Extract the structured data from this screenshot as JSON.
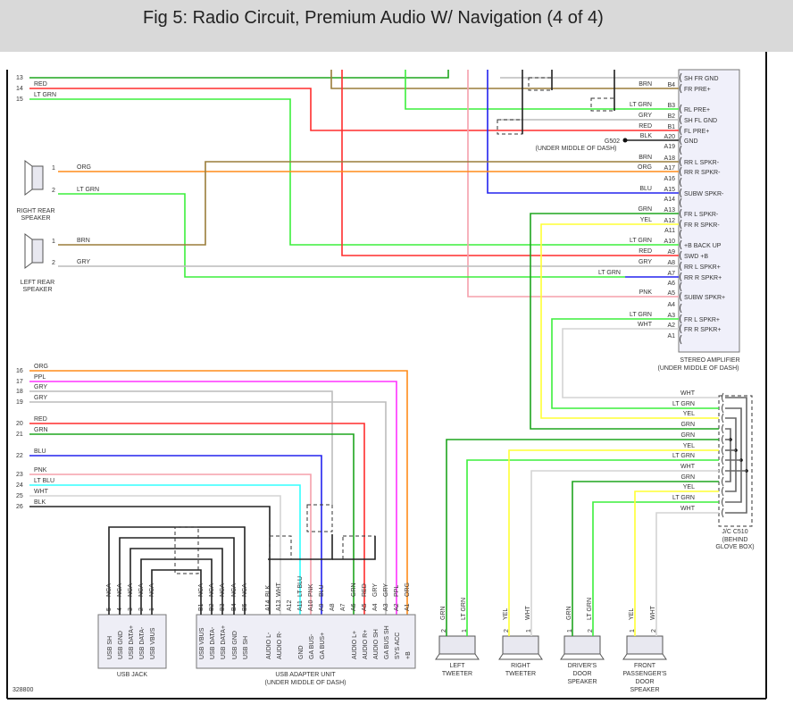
{
  "title": "Fig 5: Radio Circuit, Premium Audio W/ Navigation (4 of 4)",
  "figure_id": "328800",
  "colors": {
    "GRN": "#1ea51e",
    "LT GRN": "#3bef3b",
    "RED": "#ff2d2d",
    "BRN": "#9a7d3a",
    "ORG": "#ff8c1a",
    "BLU": "#2323ee",
    "PNK": "#f5a0ac",
    "GRY": "#bcbcbc",
    "WHT": "#d4d4d4",
    "YEL": "#ffff33",
    "PPL": "#ff33ff",
    "LT BLU": "#33ffff",
    "BLK": "#222222"
  },
  "left_wires_top": [
    {
      "num": "13",
      "color": ""
    },
    {
      "num": "14",
      "color": "RED"
    },
    {
      "num": "15",
      "color": "LT GRN"
    }
  ],
  "amplifier": {
    "name": "STEREO AMPLIFIER",
    "location": "(UNDER MIDDLE OF DASH)",
    "pins": [
      {
        "pin": "",
        "wire": "",
        "func": "SH FR GND"
      },
      {
        "pin": "B4",
        "wire": "BRN",
        "func": "FR PRE+"
      },
      {
        "pin": "B3",
        "wire": "LT GRN",
        "func": "RL PRE+"
      },
      {
        "pin": "B2",
        "wire": "GRY",
        "func": "SH FL GND"
      },
      {
        "pin": "B1",
        "wire": "RED",
        "func": "FL PRE+"
      },
      {
        "pin": "A20",
        "wire": "BLK",
        "func": "GND"
      },
      {
        "pin": "A19",
        "wire": "",
        "func": ""
      },
      {
        "pin": "A18",
        "wire": "BRN",
        "func": "RR L SPKR-"
      },
      {
        "pin": "A17",
        "wire": "ORG",
        "func": "RR R SPKR-"
      },
      {
        "pin": "A16",
        "wire": "",
        "func": ""
      },
      {
        "pin": "A15",
        "wire": "BLU",
        "func": "SUBW SPKR-"
      },
      {
        "pin": "A14",
        "wire": "",
        "func": ""
      },
      {
        "pin": "A13",
        "wire": "GRN",
        "func": "FR L SPKR-"
      },
      {
        "pin": "A12",
        "wire": "YEL",
        "func": "FR R SPKR-"
      },
      {
        "pin": "A11",
        "wire": "",
        "func": ""
      },
      {
        "pin": "A10",
        "wire": "LT GRN",
        "func": "+B BACK UP"
      },
      {
        "pin": "A9",
        "wire": "RED",
        "func": "SWD +B"
      },
      {
        "pin": "A8",
        "wire": "GRY",
        "func": "RR L SPKR+"
      },
      {
        "pin": "A7",
        "wire": "BLU",
        "func": "RR R SPKR+"
      },
      {
        "pin": "A6",
        "wire": "",
        "func": ""
      },
      {
        "pin": "A5",
        "wire": "PNK",
        "func": "SUBW SPKR+"
      },
      {
        "pin": "A4",
        "wire": "",
        "func": ""
      },
      {
        "pin": "A3",
        "wire": "LT GRN",
        "func": "FR L SPKR+"
      },
      {
        "pin": "A2",
        "wire": "WHT",
        "func": "FR R SPKR+"
      },
      {
        "pin": "A1",
        "wire": "",
        "func": ""
      }
    ],
    "a7_splice_wire": "LT GRN"
  },
  "ground": {
    "name": "G502",
    "location": "(UNDER MIDDLE OF DASH)"
  },
  "rear_speakers": [
    {
      "name": "RIGHT REAR",
      "name2": "SPEAKER",
      "pins": [
        {
          "num": "1",
          "wire": "ORG"
        },
        {
          "num": "2",
          "wire": "LT GRN"
        }
      ]
    },
    {
      "name": "LEFT REAR",
      "name2": "SPEAKER",
      "pins": [
        {
          "num": "1",
          "wire": "BRN"
        },
        {
          "num": "2",
          "wire": "GRY"
        }
      ]
    }
  ],
  "left_wires_bottom": [
    {
      "num": "16",
      "color": "ORG"
    },
    {
      "num": "17",
      "color": "PPL"
    },
    {
      "num": "18",
      "color": "GRY"
    },
    {
      "num": "19",
      "color": "GRY"
    },
    {
      "num": "20",
      "color": "RED"
    },
    {
      "num": "21",
      "color": "GRN"
    },
    {
      "num": "22",
      "color": "BLU"
    },
    {
      "num": "23",
      "color": "PNK"
    },
    {
      "num": "24",
      "color": "LT BLU"
    },
    {
      "num": "25",
      "color": "WHT"
    },
    {
      "num": "26",
      "color": "BLK"
    }
  ],
  "usb_jack": {
    "name": "USB JACK",
    "pins": [
      {
        "pin": "5",
        "wire": "NCA",
        "func": "USB SH"
      },
      {
        "pin": "4",
        "wire": "NCA",
        "func": "USB GND"
      },
      {
        "pin": "3",
        "wire": "NCA",
        "func": "USB DATA+"
      },
      {
        "pin": "2",
        "wire": "NCA",
        "func": "USB DATA-"
      },
      {
        "pin": "1",
        "wire": "NCA",
        "func": "USB VBUS"
      }
    ]
  },
  "usb_adapter": {
    "name": "USB ADAPTER UNIT",
    "location": "(UNDER MIDDLE OF DASH)",
    "pins": [
      {
        "pin": "B1",
        "wire": "NCA",
        "func": "USB VBUS"
      },
      {
        "pin": "B2",
        "wire": "NCA",
        "func": "USB DATA-"
      },
      {
        "pin": "B3",
        "wire": "NCA",
        "func": "USB DATA+"
      },
      {
        "pin": "B4",
        "wire": "NCA",
        "func": "USB GND"
      },
      {
        "pin": "B5",
        "wire": "NCA",
        "func": "USB SH"
      },
      {
        "pin": "A14",
        "wire": "BLK",
        "func": "AUDIO L-"
      },
      {
        "pin": "A13",
        "wire": "WHT",
        "func": "AUDIO R-"
      },
      {
        "pin": "A12",
        "wire": "",
        "func": ""
      },
      {
        "pin": "A11",
        "wire": "LT BLU",
        "func": "GND"
      },
      {
        "pin": "A10",
        "wire": "PNK",
        "func": "GA BUS-"
      },
      {
        "pin": "A9",
        "wire": "BLU",
        "func": "GA BUS+"
      },
      {
        "pin": "A8",
        "wire": "",
        "func": ""
      },
      {
        "pin": "A7",
        "wire": "",
        "func": ""
      },
      {
        "pin": "A6",
        "wire": "GRN",
        "func": "AUDIO L+"
      },
      {
        "pin": "A5",
        "wire": "RED",
        "func": "AUDIO R+"
      },
      {
        "pin": "A4",
        "wire": "GRY",
        "func": "AUDIO SH"
      },
      {
        "pin": "A3",
        "wire": "GRY",
        "func": "GA BUS SH"
      },
      {
        "pin": "A2",
        "wire": "PPL",
        "func": "SYS ACC"
      },
      {
        "pin": "A1",
        "wire": "ORG",
        "func": "+B"
      }
    ]
  },
  "junction": {
    "name": "J/C C510",
    "location1": "(BEHIND",
    "location2": "GLOVE BOX)",
    "pins": [
      "WHT",
      "LT GRN",
      "YEL",
      "GRN",
      "GRN",
      "YEL",
      "LT GRN",
      "WHT",
      "GRN",
      "YEL",
      "LT GRN",
      "WHT"
    ]
  },
  "front_speakers": [
    {
      "lines": [
        "LEFT",
        "TWEETER"
      ],
      "pins": [
        {
          "num": "2",
          "wire": "GRN"
        },
        {
          "num": "1",
          "wire": "LT GRN"
        }
      ]
    },
    {
      "lines": [
        "RIGHT",
        "TWEETER"
      ],
      "pins": [
        {
          "num": "2",
          "wire": "YEL"
        },
        {
          "num": "1",
          "wire": "WHT"
        }
      ]
    },
    {
      "lines": [
        "DRIVER'S",
        "DOOR",
        "SPEAKER"
      ],
      "pins": [
        {
          "num": "1",
          "wire": "GRN"
        },
        {
          "num": "2",
          "wire": "LT GRN"
        }
      ]
    },
    {
      "lines": [
        "FRONT",
        "PASSENGER'S",
        "DOOR",
        "SPEAKER"
      ],
      "pins": [
        {
          "num": "1",
          "wire": "YEL"
        },
        {
          "num": "2",
          "wire": "WHT"
        }
      ]
    }
  ]
}
